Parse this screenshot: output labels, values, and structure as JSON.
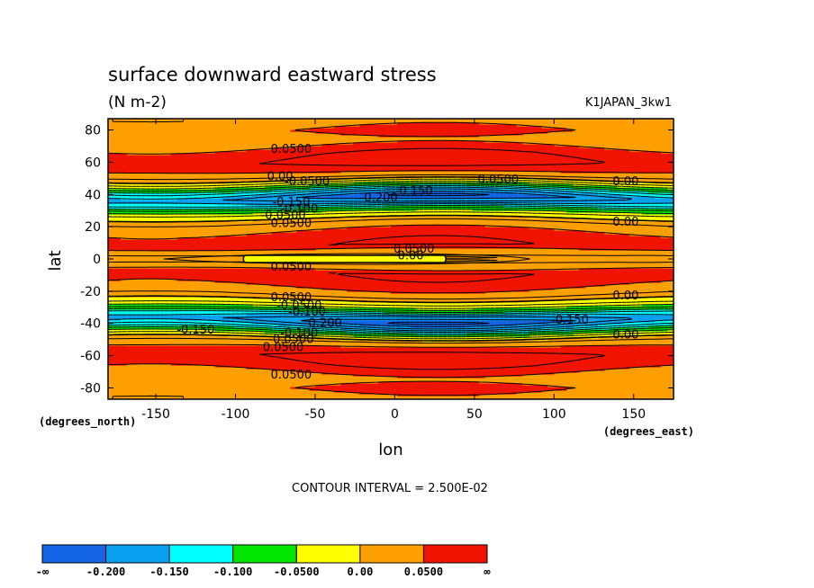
{
  "chart_data": {
    "type": "contour",
    "title": "surface downward eastward stress",
    "units": "(N m-2)",
    "dataset_label": "K1JAPAN_3kw1",
    "xlabel": "lon",
    "ylabel": "lat",
    "x_unit_note": "(degrees_east)",
    "y_unit_note": "(degrees_north)",
    "xlim": [
      -180,
      175
    ],
    "ylim": [
      -87,
      87
    ],
    "x_ticks": [
      {
        "value": -150,
        "label": "-150"
      },
      {
        "value": -100,
        "label": "-100"
      },
      {
        "value": -50,
        "label": "-50"
      },
      {
        "value": 0,
        "label": "0"
      },
      {
        "value": 50,
        "label": "50"
      },
      {
        "value": 100,
        "label": "100"
      },
      {
        "value": 150,
        "label": "150"
      }
    ],
    "y_ticks": [
      {
        "value": 80,
        "label": "80"
      },
      {
        "value": 60,
        "label": "60"
      },
      {
        "value": 40,
        "label": "40"
      },
      {
        "value": 20,
        "label": "20"
      },
      {
        "value": 0,
        "label": "0"
      },
      {
        "value": -20,
        "label": "-20"
      },
      {
        "value": -40,
        "label": "-40"
      },
      {
        "value": -60,
        "label": "-60"
      },
      {
        "value": -80,
        "label": "-80"
      }
    ],
    "contour_interval_label": "CONTOUR INTERVAL = 2.500E-02",
    "color_bins": [
      {
        "color": "#1464e6"
      },
      {
        "color": "#0aa0f0"
      },
      {
        "color": "#00ffff"
      },
      {
        "color": "#00e600"
      },
      {
        "color": "#ffff00"
      },
      {
        "color": "#ffa000"
      },
      {
        "color": "#f01400"
      }
    ],
    "colorbar_labels": [
      "-∞",
      "-0.200",
      "-0.150",
      "-0.100",
      "-0.0500",
      "0.00",
      "0.0500",
      "∞"
    ],
    "latitude_profile": [
      [
        -87,
        0.03
      ],
      [
        -80,
        0.05
      ],
      [
        -72,
        0.04
      ],
      [
        -65,
        0.07
      ],
      [
        -60,
        0.08
      ],
      [
        -55,
        0.06
      ],
      [
        -50,
        0.02
      ],
      [
        -47,
        -0.03
      ],
      [
        -45,
        -0.07
      ],
      [
        -42,
        -0.14
      ],
      [
        -38,
        -0.2
      ],
      [
        -34,
        -0.15
      ],
      [
        -31,
        -0.08
      ],
      [
        -28,
        -0.03
      ],
      [
        -25,
        0.0
      ],
      [
        -22,
        0.03
      ],
      [
        -15,
        0.06
      ],
      [
        -8,
        0.07
      ],
      [
        -4,
        0.03
      ],
      [
        0,
        0.02
      ],
      [
        4,
        0.03
      ],
      [
        8,
        0.07
      ],
      [
        15,
        0.06
      ],
      [
        22,
        0.03
      ],
      [
        25,
        0.0
      ],
      [
        28,
        -0.03
      ],
      [
        31,
        -0.08
      ],
      [
        34,
        -0.15
      ],
      [
        38,
        -0.2
      ],
      [
        42,
        -0.14
      ],
      [
        45,
        -0.07
      ],
      [
        47,
        -0.03
      ],
      [
        50,
        0.02
      ],
      [
        55,
        0.06
      ],
      [
        60,
        0.08
      ],
      [
        65,
        0.07
      ],
      [
        72,
        0.04
      ],
      [
        80,
        0.05
      ],
      [
        87,
        0.03
      ]
    ],
    "contour_labels": [
      {
        "lon": -65,
        "lat": 68,
        "text": "0.0500"
      },
      {
        "lon": -72,
        "lat": 51,
        "text": "0.00"
      },
      {
        "lon": -55,
        "lat": 48,
        "text": "-0.0500"
      },
      {
        "lon": -65,
        "lat": 35,
        "text": "-0.150"
      },
      {
        "lon": -60,
        "lat": 31,
        "text": "-0.100"
      },
      {
        "lon": -70,
        "lat": 27,
        "text": "-0.0500"
      },
      {
        "lon": -65,
        "lat": 22,
        "text": "0.0500"
      },
      {
        "lon": -10,
        "lat": 38,
        "text": "-0.200"
      },
      {
        "lon": 12,
        "lat": 42,
        "text": "-0.150"
      },
      {
        "lon": 65,
        "lat": 49,
        "text": "0.0500"
      },
      {
        "lon": 145,
        "lat": 48,
        "text": "0.00"
      },
      {
        "lon": 145,
        "lat": 23,
        "text": "0.00"
      },
      {
        "lon": 12,
        "lat": 6,
        "text": "0.0500"
      },
      {
        "lon": 10,
        "lat": 2,
        "text": "0.00"
      },
      {
        "lon": -65,
        "lat": -5,
        "text": "0.0500"
      },
      {
        "lon": -65,
        "lat": -24,
        "text": "0.0500"
      },
      {
        "lon": -60,
        "lat": -29,
        "text": "-0.0500"
      },
      {
        "lon": -55,
        "lat": -33,
        "text": "-0.100"
      },
      {
        "lon": -45,
        "lat": -40,
        "text": "-0.200"
      },
      {
        "lon": -125,
        "lat": -44,
        "text": "-0.150"
      },
      {
        "lon": -60,
        "lat": -46,
        "text": "-0.100"
      },
      {
        "lon": -65,
        "lat": -50,
        "text": "-0.0500"
      },
      {
        "lon": -70,
        "lat": -55,
        "text": "0.0500"
      },
      {
        "lon": 110,
        "lat": -38,
        "text": "-0.150"
      },
      {
        "lon": 145,
        "lat": -23,
        "text": "0.00"
      },
      {
        "lon": 145,
        "lat": -47,
        "text": "0.00"
      },
      {
        "lon": -65,
        "lat": -72,
        "text": "0.0500"
      }
    ]
  }
}
